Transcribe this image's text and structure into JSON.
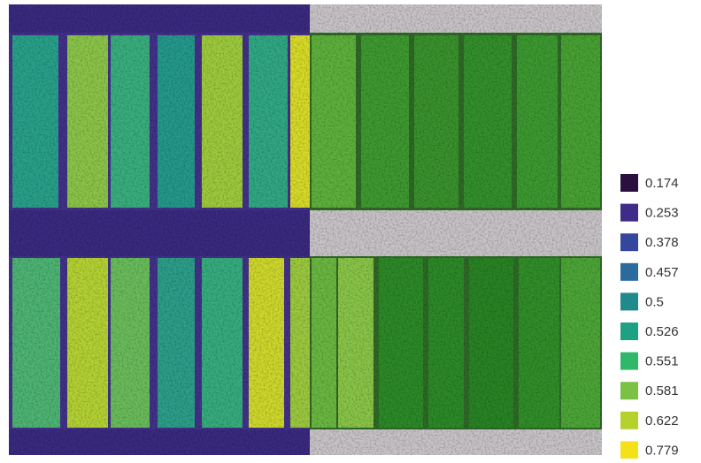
{
  "legend": {
    "items": [
      {
        "label": "0.174",
        "color": "#2b0f3f"
      },
      {
        "label": "0.253",
        "color": "#3f2b88"
      },
      {
        "label": "0.378",
        "color": "#34479c"
      },
      {
        "label": "0.457",
        "color": "#2a6a9c"
      },
      {
        "label": "0.5",
        "color": "#1f898c"
      },
      {
        "label": "0.526",
        "color": "#1ea183"
      },
      {
        "label": "0.551",
        "color": "#2fb86a"
      },
      {
        "label": "0.581",
        "color": "#7bc143"
      },
      {
        "label": "0.622",
        "color": "#b4d22b"
      },
      {
        "label": "0.779",
        "color": "#f4e11a"
      }
    ]
  }
}
